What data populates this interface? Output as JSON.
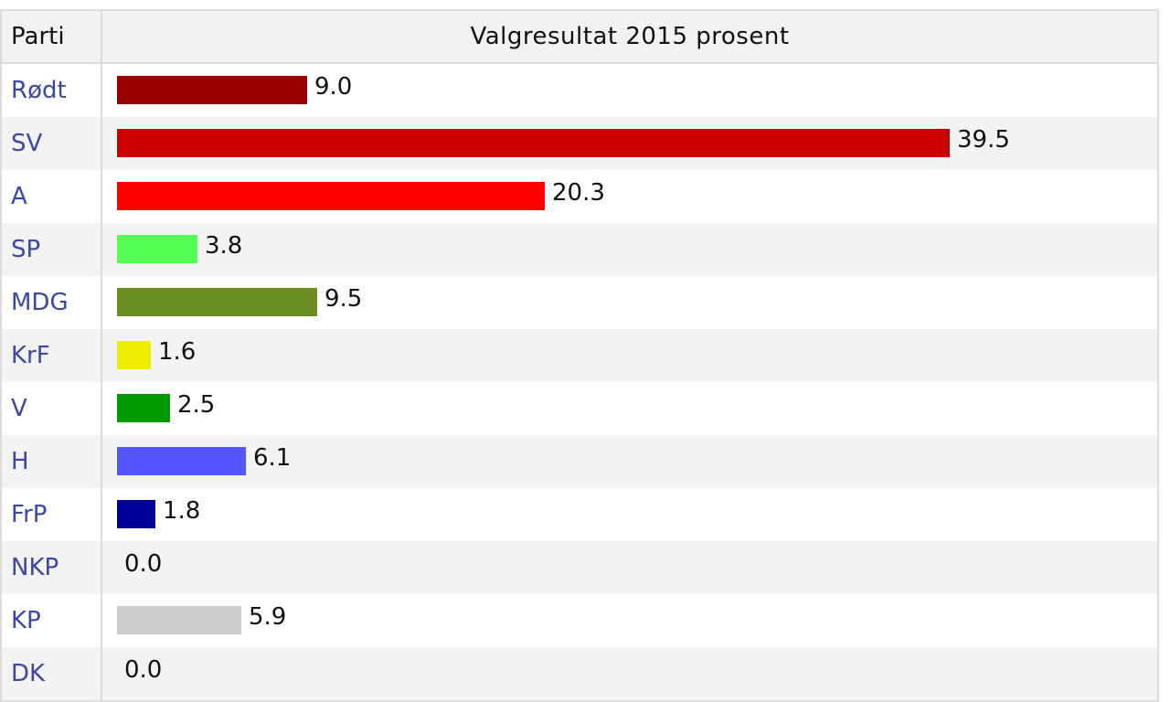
{
  "header": {
    "party_col": "Parti",
    "result_col": "Valgresultat 2015 prosent"
  },
  "chart_data": {
    "type": "bar",
    "title": "Valgresultat 2015 prosent",
    "categories": [
      "Rødt",
      "SV",
      "A",
      "SP",
      "MDG",
      "KrF",
      "V",
      "H",
      "FrP",
      "NKP",
      "KP",
      "DK"
    ],
    "values": [
      9.0,
      39.5,
      20.3,
      3.8,
      9.5,
      1.6,
      2.5,
      6.1,
      1.8,
      0.0,
      5.9,
      0.0
    ],
    "value_labels": [
      "9.0",
      "39.5",
      "20.3",
      "3.8",
      "9.5",
      "1.6",
      "2.5",
      "6.1",
      "1.8",
      "0.0",
      "5.9",
      "0.0"
    ],
    "colors": [
      "#990000",
      "#cc0000",
      "#ff0000",
      "#55ff55",
      "#6b8e23",
      "#eeee00",
      "#009900",
      "#5555ff",
      "#000099",
      "#cc0000",
      "#cccccc",
      "#999999"
    ],
    "xlim": [
      0,
      40
    ]
  }
}
